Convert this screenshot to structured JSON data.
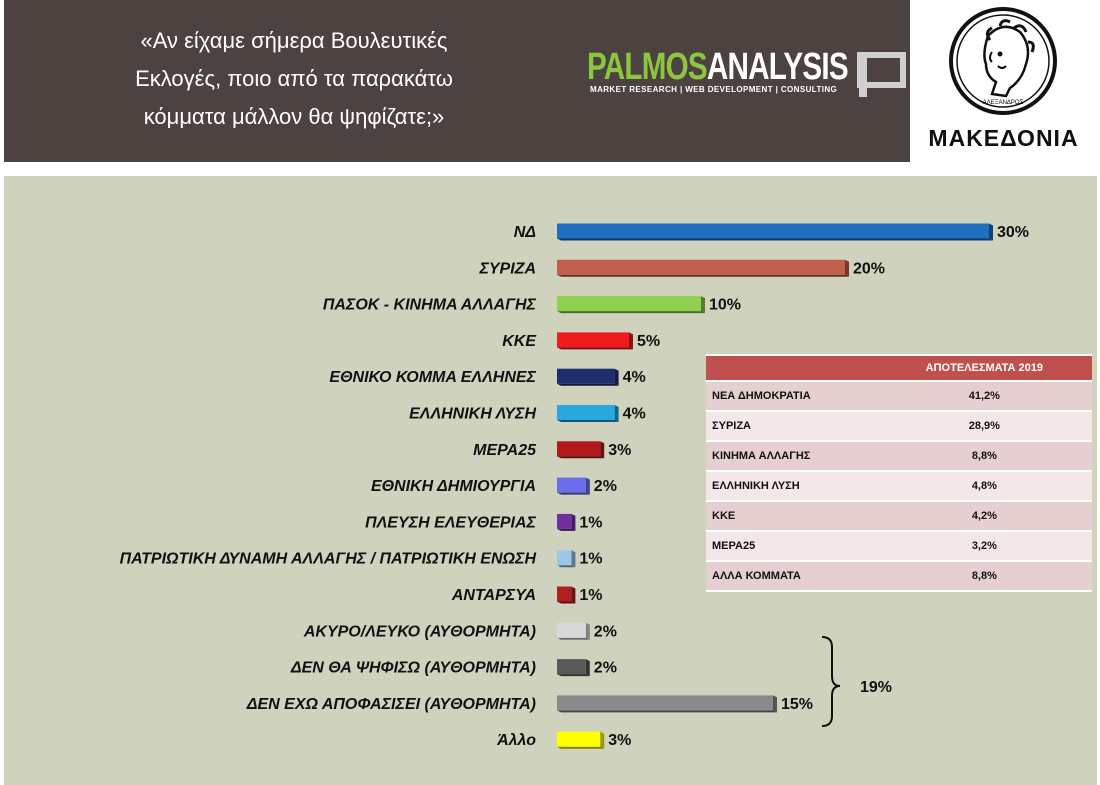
{
  "header": {
    "question_lines": [
      "«Αν είχαμε σήμερα Βουλευτικές",
      "Εκλογές, ποιο από τα παρακάτω",
      "κόμματα μάλλον θα ψηφίζατε;»"
    ],
    "brand_first": "PALMOS",
    "brand_second": "ANALYSIS",
    "brand_tagline": "MARKET RESEARCH | WEB DEVELOPMENT | CONSULTING",
    "logo_text": "ΜΑΚΕΔΟΝΙΑ",
    "coin_text": "ΑΛΕΞΑΝΔΡΟΣ"
  },
  "chart_data": {
    "type": "bar",
    "orientation": "horizontal",
    "categories": [
      "ΝΔ",
      "ΣΥΡΙΖΑ",
      "ΠΑΣΟΚ - ΚΙΝΗΜΑ ΑΛΛΑΓΗΣ",
      "ΚΚΕ",
      "ΕΘΝΙΚΟ ΚΟΜΜΑ ΕΛΛΗΝΕΣ",
      "ΕΛΛΗΝΙΚΗ ΛΥΣΗ",
      "ΜΕΡΑ25",
      "ΕΘΝΙΚΗ ΔΗΜΙΟΥΡΓΙΑ",
      "ΠΛΕΥΣΗ ΕΛΕΥΘΕΡΙΑΣ",
      "ΠΑΤΡΙΩΤΙΚΗ ΔΥΝΑΜΗ ΑΛΛΑΓΗΣ / ΠΑΤΡΙΩΤΙΚΗ ΕΝΩΣΗ",
      "ΑΝΤΑΡΣΥΑ",
      "ΑΚΥΡΟ/ΛΕΥΚΟ (ΑΥΘΟΡΜΗΤΑ)",
      "ΔΕΝ ΘΑ ΨΗΦΙΣΩ (ΑΥΘΟΡΜΗΤΑ)",
      "ΔΕΝ ΕΧΩ ΑΠΟΦΑΣΙΣΕΙ (ΑΥΘΟΡΜΗΤΑ)",
      "Άλλο"
    ],
    "values": [
      30,
      20,
      10,
      5,
      4,
      4,
      3,
      2,
      1,
      1,
      1,
      2,
      2,
      15,
      3
    ],
    "value_labels": [
      "30%",
      "20%",
      "10%",
      "5%",
      "4%",
      "4%",
      "3%",
      "2%",
      "1%",
      "1%",
      "1%",
      "2%",
      "2%",
      "15%",
      "3%"
    ],
    "colors": [
      "#1f6fc1",
      "#c0604a",
      "#8fd14f",
      "#ee1c1c",
      "#1f2f6e",
      "#29a8e0",
      "#b01a1a",
      "#6a6ee8",
      "#7030a0",
      "#9cc8e8",
      "#b02020",
      "#d9d9d9",
      "#595959",
      "#8a8a8a",
      "#ffff00"
    ],
    "group_annotation": {
      "label": "19%",
      "categories": [
        "ΑΚΥΡΟ/ΛΕΥΚΟ (ΑΥΘΟΡΜΗΤΑ)",
        "ΔΕΝ ΘΑ ΨΗΦΙΣΩ (ΑΥΘΟΡΜΗΤΑ)",
        "ΔΕΝ ΕΧΩ ΑΠΟΦΑΣΙΣΕΙ (ΑΥΘΟΡΜΗΤΑ)"
      ]
    },
    "xlim": [
      0,
      30
    ],
    "grid": false,
    "legend": "none"
  },
  "results_table": {
    "header": [
      "",
      "ΑΠΟΤΕΛΕΣΜΑΤΑ 2019"
    ],
    "rows": [
      [
        "ΝΕΑ ΔΗΜΟΚΡΑΤΙΑ",
        "41,2%"
      ],
      [
        "ΣΥΡΙΖΑ",
        "28,9%"
      ],
      [
        "ΚΙΝΗΜΑ ΑΛΛΑΓΗΣ",
        "8,8%"
      ],
      [
        "ΕΛΛΗΝΙΚΗ ΛΥΣΗ",
        "4,8%"
      ],
      [
        "ΚΚΕ",
        "4,2%"
      ],
      [
        "ΜΕΡΑ25",
        "3,2%"
      ],
      [
        "ΑΛΛΑ ΚΟΜΜΑΤΑ",
        "8,8%"
      ]
    ]
  }
}
